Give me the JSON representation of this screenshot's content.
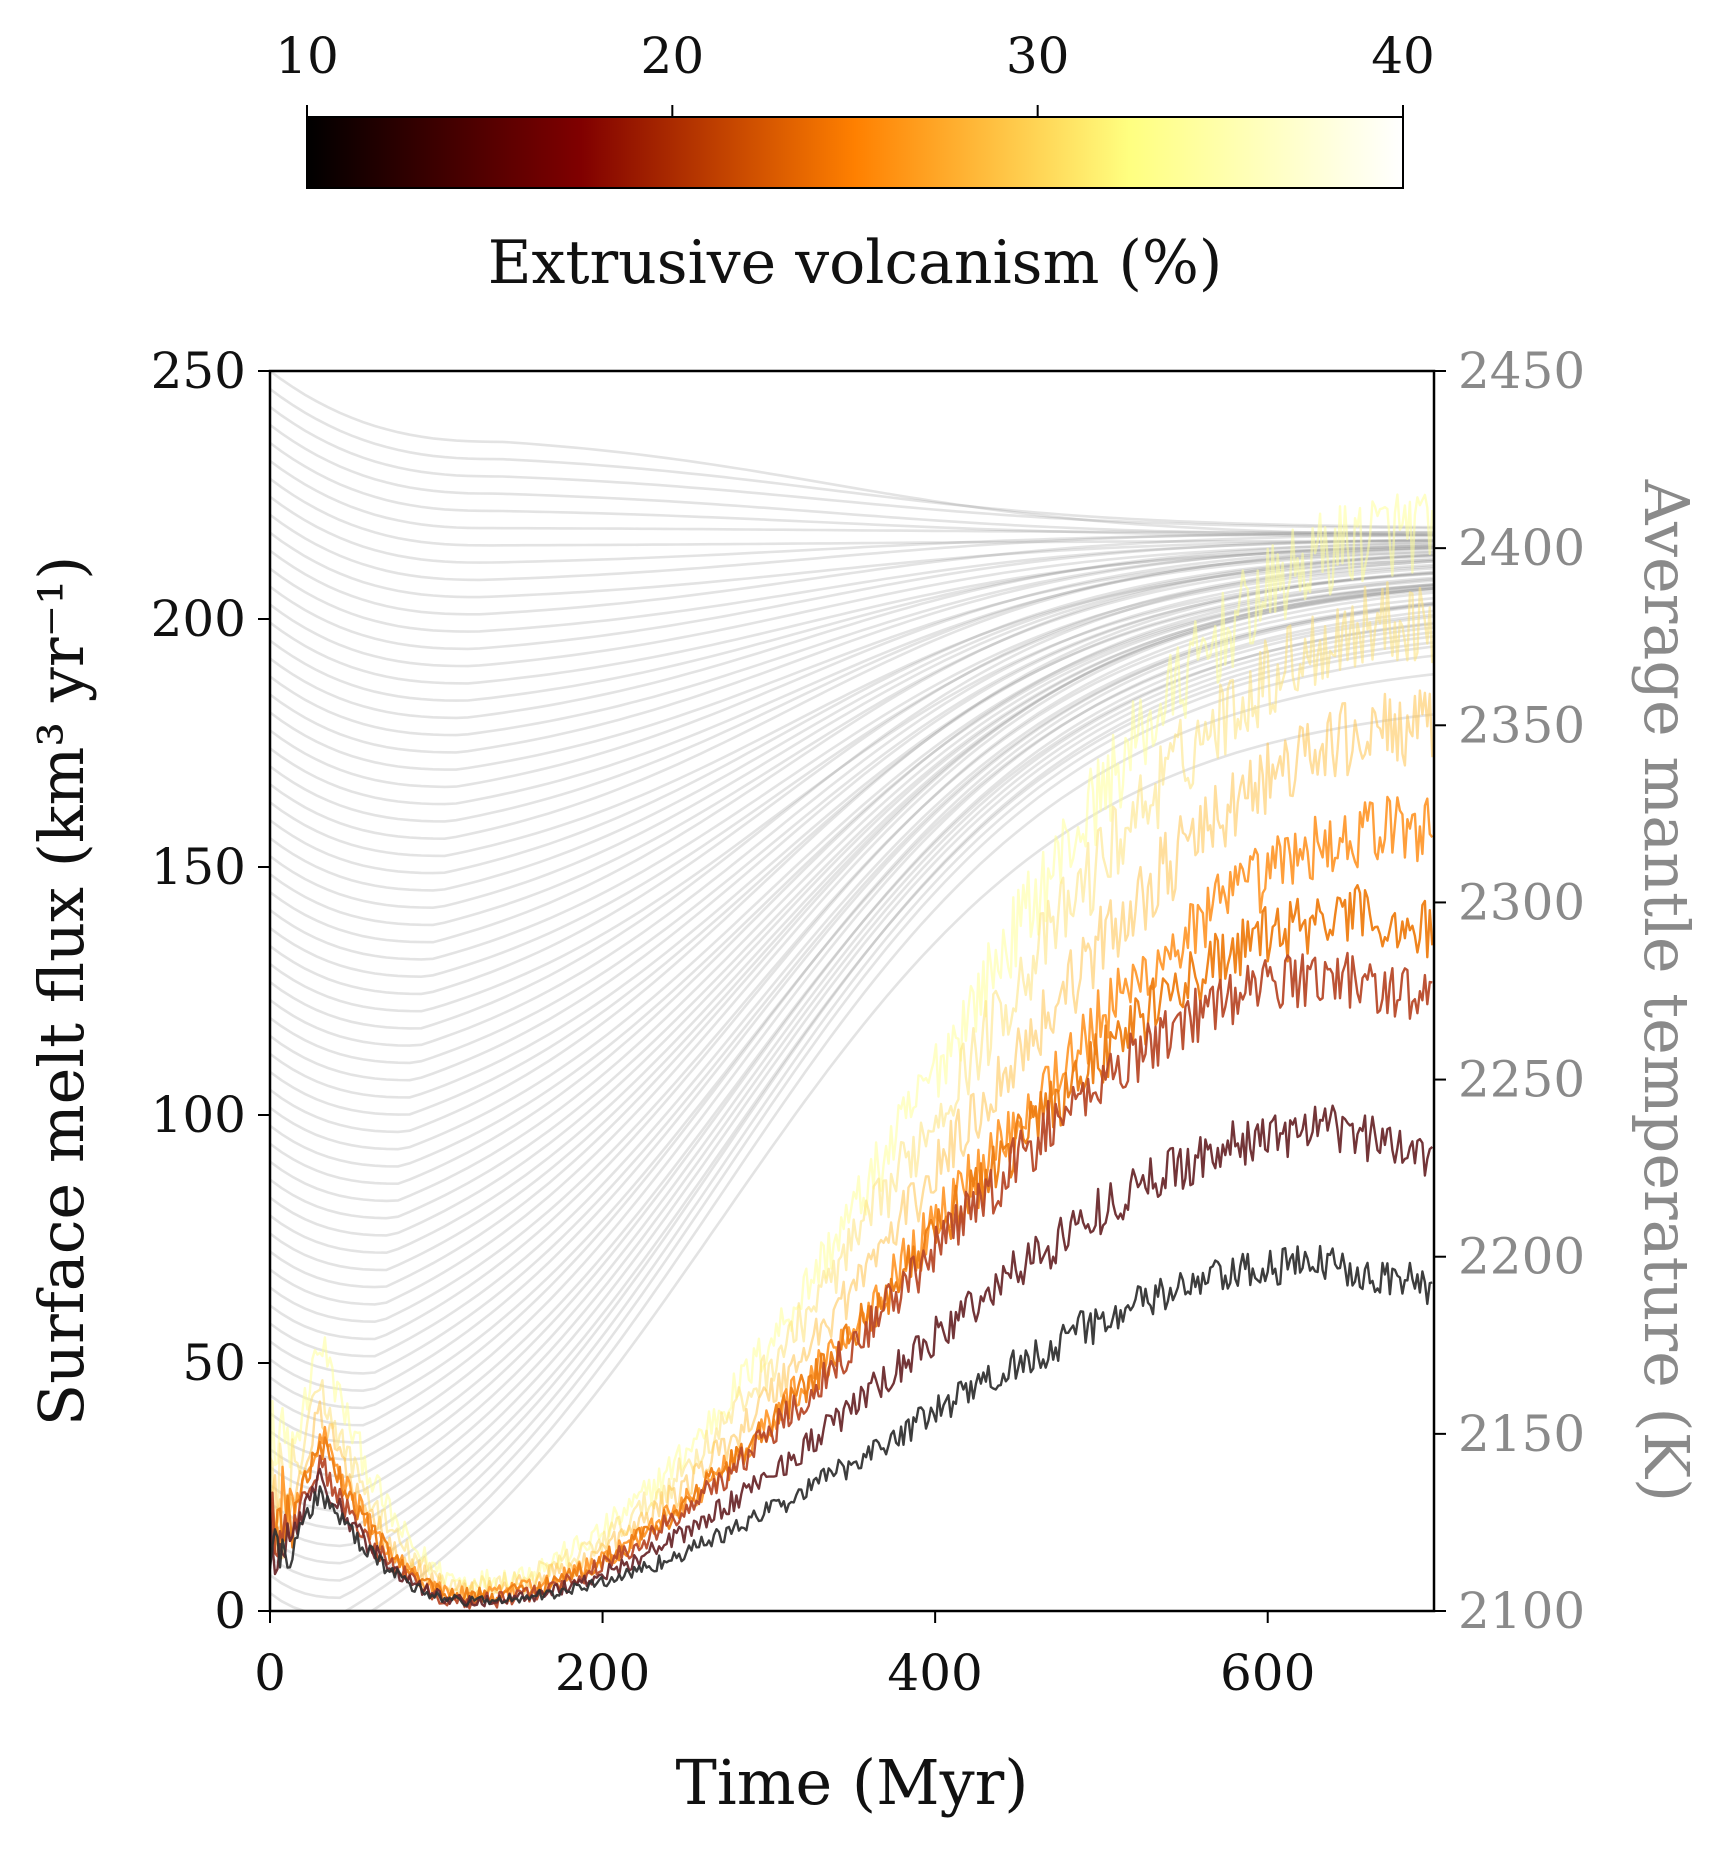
{
  "chart_data": {
    "type": "line",
    "colorbar": {
      "label": "Extrusive volcanism (%)",
      "range": [
        10,
        40
      ],
      "ticks": [
        "10",
        "20",
        "30",
        "40"
      ],
      "colormap": "afmhot",
      "stops": [
        "#000000",
        "#800000",
        "#ff8000",
        "#ffff80",
        "#ffffff"
      ]
    },
    "xaxis": {
      "label": "Time (Myr)",
      "range": [
        0,
        700
      ],
      "ticks": [
        "0",
        "200",
        "400",
        "600"
      ]
    },
    "yaxis_left": {
      "label": "Surface melt flux (km³ yr⁻¹)",
      "range": [
        0,
        250
      ],
      "ticks": [
        "0",
        "50",
        "100",
        "150",
        "200",
        "250"
      ]
    },
    "yaxis_right": {
      "label": "Average mantle temperature (K)",
      "range": [
        2100,
        2450
      ],
      "ticks": [
        "2100",
        "2150",
        "2200",
        "2250",
        "2300",
        "2350",
        "2400",
        "2450"
      ],
      "color": "#8a8a8a"
    },
    "temperature_curves": {
      "color": "#808080",
      "count": 70,
      "end_time": 700,
      "start_temperature_range": [
        2100,
        2450
      ],
      "end_temperature_range": [
        2355,
        2405
      ]
    },
    "melt_flux_series": [
      {
        "extrusive_percent": 10,
        "color": "#333333",
        "peak_time": 640,
        "peak_flux": 70,
        "early_peak": 24,
        "min_flux": 2
      },
      {
        "extrusive_percent": 15,
        "color": "#6b2a2d",
        "peak_time": 640,
        "peak_flux": 97,
        "early_peak": 27,
        "min_flux": 2
      },
      {
        "extrusive_percent": 20,
        "color": "#b84a2a",
        "peak_time": 640,
        "peak_flux": 128,
        "early_peak": 30,
        "min_flux": 2
      },
      {
        "extrusive_percent": 25,
        "color": "#ee7d12",
        "peak_time": 660,
        "peak_flux": 140,
        "early_peak": 34,
        "min_flux": 3
      },
      {
        "extrusive_percent": 28,
        "color": "#ff9a30",
        "peak_time": 690,
        "peak_flux": 158,
        "early_peak": 36,
        "min_flux": 3
      },
      {
        "extrusive_percent": 32,
        "color": "#ffc34d",
        "peak_time": 690,
        "peak_flux": 178,
        "early_peak": 40,
        "min_flux": 4
      },
      {
        "extrusive_percent": 35,
        "color": "#fee27a",
        "peak_time": 690,
        "peak_flux": 200,
        "early_peak": 45,
        "min_flux": 5
      },
      {
        "extrusive_percent": 38,
        "color": "#ffff99",
        "peak_time": 690,
        "peak_flux": 218,
        "early_peak": 55,
        "min_flux": 6
      }
    ]
  }
}
